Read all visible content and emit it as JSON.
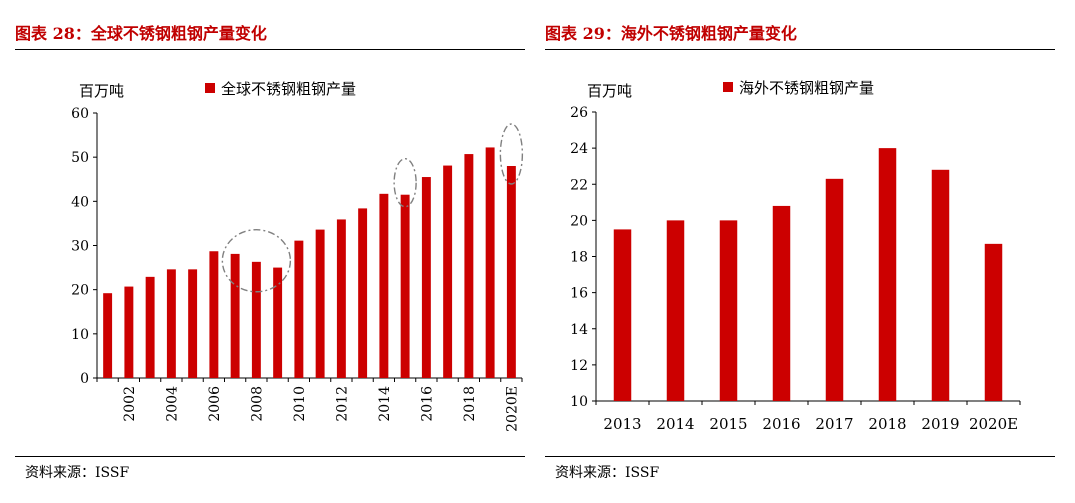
{
  "colors": {
    "bar": "#cc0000",
    "title": "#c00000",
    "axis": "#000000",
    "highlight_circle": "#808080"
  },
  "left": {
    "title": "图表 28：全球不锈钢粗钢产量变化",
    "source": "资料来源：ISSF",
    "chart_data": {
      "type": "bar",
      "unit_label": "百万吨",
      "legend": "全球不锈钢粗钢产量",
      "legend_position": "top",
      "grid": false,
      "ylim": [
        0,
        60
      ],
      "yticks": [
        "0",
        "10",
        "20",
        "30",
        "40",
        "50",
        "60"
      ],
      "xtick_labels": [
        "2002",
        "2004",
        "2006",
        "2008",
        "2010",
        "2012",
        "2014",
        "2016",
        "2018",
        "2020E"
      ],
      "categories": [
        "2001",
        "2002",
        "2003",
        "2004",
        "2005",
        "2006",
        "2007",
        "2008",
        "2009",
        "2010",
        "2011",
        "2012",
        "2013",
        "2014",
        "2015",
        "2016",
        "2017",
        "2018",
        "2019",
        "2020E"
      ],
      "values": [
        19.2,
        20.7,
        22.9,
        24.6,
        24.6,
        28.7,
        28.1,
        26.3,
        25.0,
        31.1,
        33.6,
        35.9,
        38.4,
        41.7,
        41.5,
        45.5,
        48.1,
        50.7,
        52.2,
        48.0
      ],
      "highlighted_categories": [
        "2007",
        "2008",
        "2009",
        "2015",
        "2020E"
      ]
    }
  },
  "right": {
    "title": "图表 29：海外不锈钢粗钢产量变化",
    "source": "资料来源：ISSF",
    "chart_data": {
      "type": "bar",
      "unit_label": "百万吨",
      "legend": "海外不锈钢粗钢产量",
      "legend_position": "top",
      "grid": false,
      "ylim": [
        10,
        26
      ],
      "yticks": [
        "10",
        "12",
        "14",
        "16",
        "18",
        "20",
        "22",
        "24",
        "26"
      ],
      "categories": [
        "2013",
        "2014",
        "2015",
        "2016",
        "2017",
        "2018",
        "2019",
        "2020E"
      ],
      "values": [
        19.5,
        20.0,
        20.0,
        20.8,
        22.3,
        24.0,
        22.8,
        18.7
      ]
    }
  }
}
